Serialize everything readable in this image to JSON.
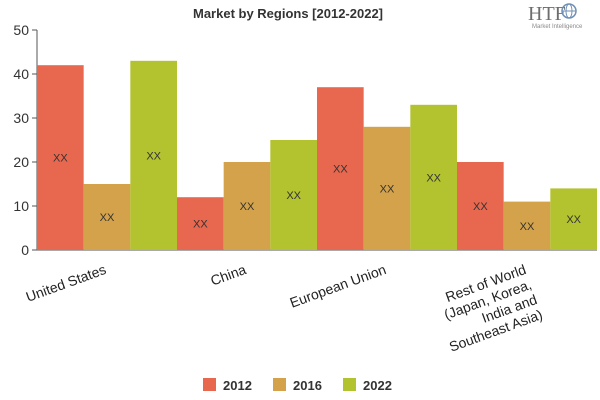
{
  "chart_data": {
    "type": "bar",
    "title": "Market by Regions [2012-2022]",
    "categories": [
      "United States",
      "China",
      "European Union",
      "Rest of World (Japan, Korea, India and Southeast Asia)"
    ],
    "category_lines": [
      [
        "United States"
      ],
      [
        "China"
      ],
      [
        "European Union"
      ],
      [
        "Rest of World",
        "(Japan, Korea,",
        "India and",
        "Southeast Asia)"
      ]
    ],
    "series": [
      {
        "name": "2012",
        "color": "#e8674f",
        "values": [
          42,
          12,
          37,
          20
        ]
      },
      {
        "name": "2016",
        "color": "#d4a24a",
        "values": [
          15,
          20,
          28,
          11
        ]
      },
      {
        "name": "2022",
        "color": "#b3c22f",
        "values": [
          43,
          25,
          33,
          14
        ]
      }
    ],
    "data_label": "XX",
    "ylim": [
      0,
      50
    ],
    "yticks": [
      0,
      10,
      20,
      30,
      40,
      50
    ],
    "xlabel": "",
    "ylabel": "",
    "grid": false,
    "legend_position": "bottom"
  },
  "logo": {
    "text": "HTF",
    "sub": "Market Intelligence"
  }
}
